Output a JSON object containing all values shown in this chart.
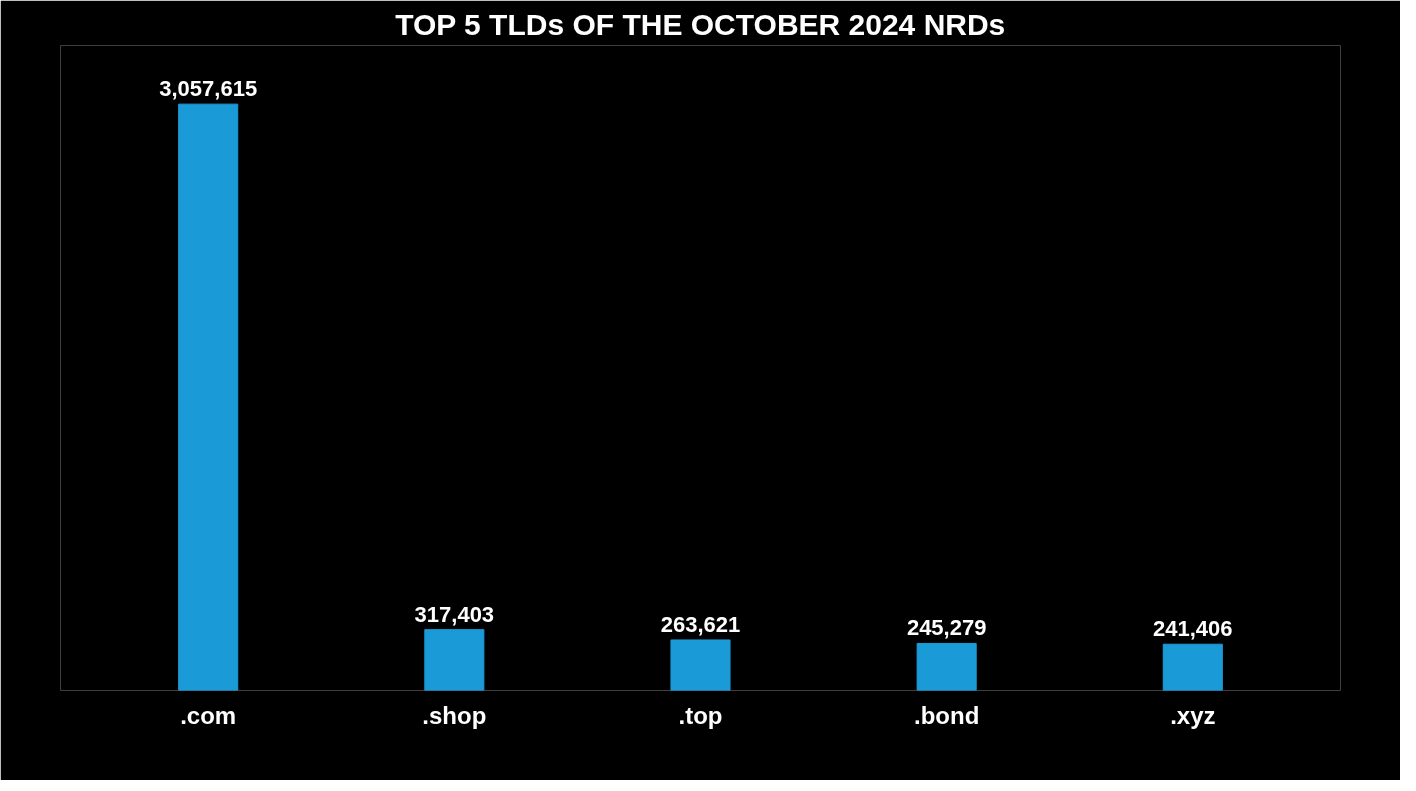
{
  "chart_data": {
    "type": "bar",
    "title": "TOP 5 TLDs OF THE OCTOBER 2024 NRDs",
    "categories": [
      ".com",
      ".shop",
      ".top",
      ".bond",
      ".xyz"
    ],
    "values": [
      3057615,
      317403,
      263621,
      245279,
      241406
    ],
    "value_labels": [
      "3,057,615",
      "317,403",
      "263,621",
      "245,279",
      "241,406"
    ],
    "color": "#1a9bd7",
    "grid": false,
    "tick_labels": "x"
  }
}
